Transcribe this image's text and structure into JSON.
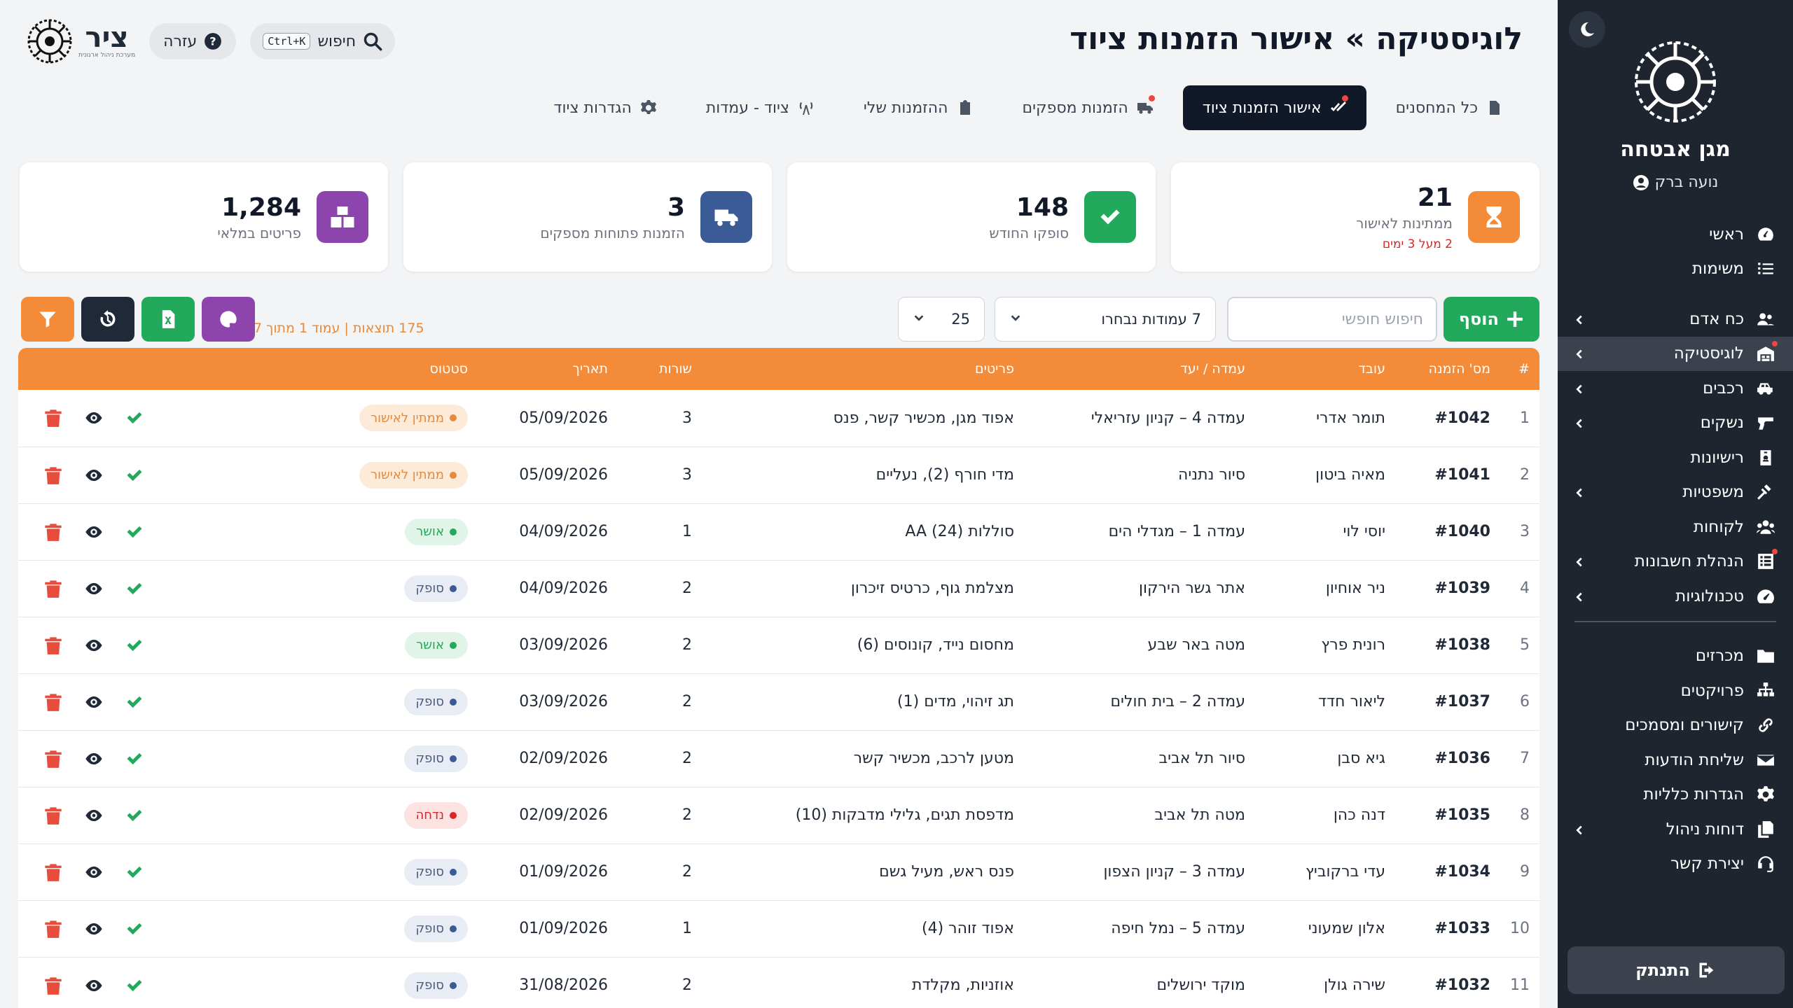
{
  "header": {
    "title": "לוגיסטיקה » אישור הזמנות ציוד",
    "help_label": "עזרה",
    "search_label": "חיפוש",
    "search_shortcut": "Ctrl+K",
    "brand_name": "ציר",
    "brand_tagline": "מערכת ניהול ארגונית"
  },
  "tabs": [
    {
      "label": "כל המחסנים",
      "icon": "file-icon"
    },
    {
      "label": "אישור הזמנות ציוד",
      "icon": "double-check-icon",
      "active": true
    },
    {
      "label": "הזמנות מספקים",
      "icon": "truck-icon"
    },
    {
      "label": "ההזמנות שלי",
      "icon": "clipboard-icon"
    },
    {
      "label": "ציוד - עמדות",
      "icon": "tower-icon"
    },
    {
      "label": "הגדרות ציוד",
      "icon": "gear-icon"
    }
  ],
  "cards": [
    {
      "value": "21",
      "label": "ממתינות לאישור",
      "note": "2 מעל 3 ימים",
      "color": "#f38b38",
      "icon": "hourglass-icon"
    },
    {
      "value": "148",
      "label": "סופקו החודש",
      "color": "#22a95b",
      "icon": "check-icon"
    },
    {
      "value": "3",
      "label": "הזמנות פתוחות מספקים",
      "color": "#3b5b96",
      "icon": "truck-icon"
    },
    {
      "value": "1,284",
      "label": "פריטים במלאי",
      "color": "#8e44ad",
      "icon": "boxes-icon"
    }
  ],
  "toolbar": {
    "add_label": "הוסף",
    "search_placeholder": "חיפוש חופשי",
    "columns_label": "7 עמודות נבחרו",
    "page_size": "25",
    "results_text": "175 תוצאות | עמוד 1 מתוך 7"
  },
  "table": {
    "headers": [
      "#",
      "מס' הזמנה",
      "עובד",
      "עמדה / יעד",
      "פריטים",
      "שורות",
      "תאריך",
      "סטטוס",
      ""
    ],
    "rows": [
      {
        "n": "1",
        "id": "#1042",
        "emp": "תומר אדרי",
        "dest": "עמדה 4 – קניון עזריאלי",
        "items": "אפוד מגן, מכשיר קשר, פנס",
        "lines": "3",
        "date": "05/09/2026",
        "status": "ממתין לאישור",
        "st": "pending"
      },
      {
        "n": "2",
        "id": "#1041",
        "emp": "מאיה ביטון",
        "dest": "סיור נתניה",
        "items": "מדי חורף (2), נעליים",
        "lines": "3",
        "date": "05/09/2026",
        "status": "ממתין לאישור",
        "st": "pending"
      },
      {
        "n": "3",
        "id": "#1040",
        "emp": "יוסי לוי",
        "dest": "עמדה 1 – מגדלי הים",
        "items": "סוללות AA (24)",
        "lines": "1",
        "date": "04/09/2026",
        "status": "אושר",
        "st": "approved"
      },
      {
        "n": "4",
        "id": "#1039",
        "emp": "ניר אוחיון",
        "dest": "אתר גשר הירקון",
        "items": "מצלמת גוף, כרטיס זיכרון",
        "lines": "2",
        "date": "04/09/2026",
        "status": "סופק",
        "st": "supplied"
      },
      {
        "n": "5",
        "id": "#1038",
        "emp": "רונית פרץ",
        "dest": "מטה באר שבע",
        "items": "מחסום נייד, קונוסים (6)",
        "lines": "2",
        "date": "03/09/2026",
        "status": "אושר",
        "st": "approved"
      },
      {
        "n": "6",
        "id": "#1037",
        "emp": "ליאור חדד",
        "dest": "עמדה 2 – בית חולים",
        "items": "תג זיהוי, מדים (1)",
        "lines": "2",
        "date": "03/09/2026",
        "status": "סופק",
        "st": "supplied"
      },
      {
        "n": "7",
        "id": "#1036",
        "emp": "גיא סבן",
        "dest": "סיור תל אביב",
        "items": "מטען לרכב, מכשיר קשר",
        "lines": "2",
        "date": "02/09/2026",
        "status": "סופק",
        "st": "supplied"
      },
      {
        "n": "8",
        "id": "#1035",
        "emp": "דנה כהן",
        "dest": "מטה תל אביב",
        "items": "מדפסת תגים, גלילי מדבקות (10)",
        "lines": "2",
        "date": "02/09/2026",
        "status": "נדחה",
        "st": "rejected"
      },
      {
        "n": "9",
        "id": "#1034",
        "emp": "עדי ברקוביץ",
        "dest": "עמדה 3 – קניון הצפון",
        "items": "פנס ראש, מעיל גשם",
        "lines": "2",
        "date": "01/09/2026",
        "status": "סופק",
        "st": "supplied"
      },
      {
        "n": "10",
        "id": "#1033",
        "emp": "אלון שמעוני",
        "dest": "עמדה 5 – נמל חיפה",
        "items": "אפוד זוהר (4)",
        "lines": "1",
        "date": "01/09/2026",
        "status": "סופק",
        "st": "supplied"
      },
      {
        "n": "11",
        "id": "#1032",
        "emp": "שירה גולן",
        "dest": "מוקד ירושלים",
        "items": "אוזניות, מקלדת",
        "lines": "2",
        "date": "31/08/2026",
        "status": "סופק",
        "st": "supplied"
      }
    ]
  },
  "sidebar": {
    "company": "מגן אבטחה",
    "user": "נועה ברק",
    "logout_label": "התנתק",
    "groups": [
      [
        {
          "label": "ראשי",
          "icon": "dashboard-icon"
        },
        {
          "label": "משימות",
          "icon": "tasks-icon"
        }
      ],
      [
        {
          "label": "כח אדם",
          "icon": "users-icon",
          "chevron": true
        },
        {
          "label": "לוגיסטיקה",
          "icon": "warehouse-icon",
          "chevron": true,
          "active": true,
          "dot": true
        },
        {
          "label": "רכבים",
          "icon": "car-icon",
          "chevron": true
        },
        {
          "label": "נשקים",
          "icon": "gun-icon",
          "chevron": true
        },
        {
          "label": "רישיונות",
          "icon": "id-card-icon"
        },
        {
          "label": "משפטיות",
          "icon": "gavel-icon",
          "chevron": true
        },
        {
          "label": "לקוחות",
          "icon": "clients-icon"
        },
        {
          "label": "הנהלת חשבונות",
          "icon": "ledger-icon",
          "chevron": true,
          "dot": true
        },
        {
          "label": "טכנולוגיות",
          "icon": "gauge-icon",
          "chevron": true
        }
      ],
      [
        {
          "label": "מכרזים",
          "icon": "folder-icon"
        },
        {
          "label": "פרויקטים",
          "icon": "sitemap-icon"
        },
        {
          "label": "קישורים ומסמכים",
          "icon": "link-icon"
        },
        {
          "label": "שליחת הודעות",
          "icon": "envelope-icon"
        },
        {
          "label": "הגדרות כלליות",
          "icon": "gear-icon"
        },
        {
          "label": "דוחות ניהול",
          "icon": "copy-icon",
          "chevron": true
        },
        {
          "label": "יצירת קשר",
          "icon": "headset-icon"
        }
      ]
    ]
  },
  "colors": {
    "accent_orange": "#f38b38",
    "success_green": "#22a95b",
    "dark": "#111827",
    "sidebar_bg": "#1f252e"
  }
}
